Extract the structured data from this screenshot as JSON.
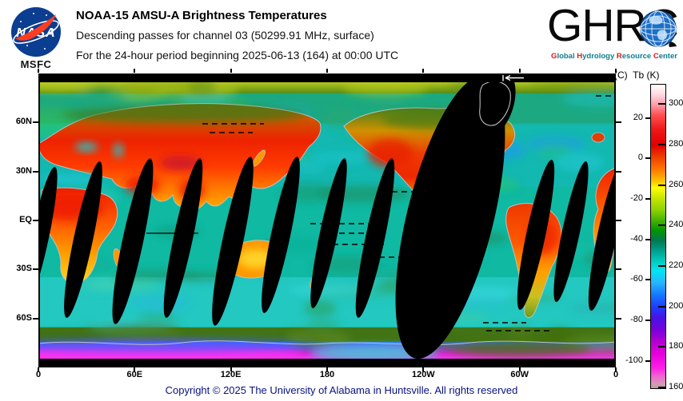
{
  "header": {
    "title": "NOAA-15 AMSU-A Brightness Temperatures",
    "subtitle1": "Descending passes for channel 03 (50299.91 MHz, surface)",
    "subtitle2": "For the 24-hour period beginning 2025-06-13 (164) at 00:00 UTC",
    "nasa_logo": {
      "agency": "NASA",
      "center": "MSFC"
    },
    "ghrc_logo": {
      "acronym": "GHRC",
      "caption_segments": [
        {
          "text": "G",
          "accent": true
        },
        {
          "text": "lobal ",
          "accent": false
        },
        {
          "text": "H",
          "accent": true
        },
        {
          "text": "ydrology ",
          "accent": false
        },
        {
          "text": "R",
          "accent": true
        },
        {
          "text": "esource ",
          "accent": false
        },
        {
          "text": "C",
          "accent": true
        },
        {
          "text": "enter",
          "accent": false
        }
      ]
    }
  },
  "chart_data": {
    "type": "heatmap",
    "title": "NOAA-15 AMSU-A Brightness Temperatures",
    "subtitle": "Descending passes for channel 03 (50299.91 MHz, surface)",
    "period": "24-hour period beginning 2025-06-13 (164) at 00:00 UTC",
    "projection": "equirectangular world map, longitude 0E eastward to 0 (360), latitude 90N to 90S",
    "x_axis": {
      "ticks": [
        {
          "label": "0",
          "lon": 0
        },
        {
          "label": "60E",
          "lon": 60
        },
        {
          "label": "120E",
          "lon": 120
        },
        {
          "label": "180",
          "lon": 180
        },
        {
          "label": "120W",
          "lon": 240
        },
        {
          "label": "60W",
          "lon": 300
        },
        {
          "label": "0",
          "lon": 360
        }
      ]
    },
    "y_axis": {
      "ticks": [
        {
          "label": "60N",
          "lat": 60
        },
        {
          "label": "30N",
          "lat": 30
        },
        {
          "label": "EQ",
          "lat": 0
        },
        {
          "label": "30S",
          "lat": -30
        },
        {
          "label": "60S",
          "lat": -60
        }
      ]
    },
    "colorbar": {
      "header_c": "(C)",
      "header_k": "Tb (K)",
      "units": "brightness temperature",
      "range_kelvin": [
        160,
        310
      ],
      "kelvin_ticks": [
        300,
        280,
        260,
        240,
        220,
        200,
        180,
        160
      ],
      "celsius_ticks": [
        20,
        0,
        -20,
        -40,
        -60,
        -80,
        -100
      ],
      "gradient_stops": [
        [
          310,
          "#ffffff"
        ],
        [
          305,
          "#ffd8e2"
        ],
        [
          300,
          "#ff9aa8"
        ],
        [
          295,
          "#ff5050"
        ],
        [
          288,
          "#f01818"
        ],
        [
          280,
          "#e00000"
        ],
        [
          274,
          "#f04000"
        ],
        [
          268,
          "#ff7800"
        ],
        [
          262,
          "#ffc800"
        ],
        [
          259,
          "#ffff00"
        ],
        [
          254,
          "#c8e600"
        ],
        [
          248,
          "#8cd200"
        ],
        [
          243,
          "#46b400"
        ],
        [
          238,
          "#009600"
        ],
        [
          233,
          "#007850"
        ],
        [
          228,
          "#00a08c"
        ],
        [
          222,
          "#00d2c8"
        ],
        [
          218,
          "#00e6f0"
        ],
        [
          212,
          "#28b4ff"
        ],
        [
          206,
          "#1478ff"
        ],
        [
          200,
          "#1e3cff"
        ],
        [
          195,
          "#4614e6"
        ],
        [
          189,
          "#7800dc"
        ],
        [
          183,
          "#b400d2"
        ],
        [
          177,
          "#e600dc"
        ],
        [
          170,
          "#ff1ee6"
        ],
        [
          166,
          "#f064d2"
        ],
        [
          162,
          "#d49ab4"
        ],
        [
          160,
          "#b4a0a0"
        ]
      ]
    },
    "features": {
      "no_data_color": "#000000",
      "swath_gaps": "black lens-shaped gaps between descending satellite passes, one wide unsampled swath over the eastern Pacific / Central America",
      "polar_no_data_bands": "solid black strips along the top (above ~82N) and bottom (below ~82S) of the map",
      "pass_start_marker": "white left arrow in top black band near 120W"
    }
  },
  "footer": {
    "copyright": "Copyright © 2025 The University of Alabama in Huntsville.  All rights reserved"
  },
  "colors": {
    "nasa_blue": "#0b3d91",
    "nasa_red": "#fc3d21",
    "ghrc_teal": "#0d7f8f",
    "ghrc_red": "#e01818",
    "footer_navy": "#0a1080",
    "ocean_teal": "#0fb9a2",
    "coastline_gray": "#c0c0c0"
  }
}
